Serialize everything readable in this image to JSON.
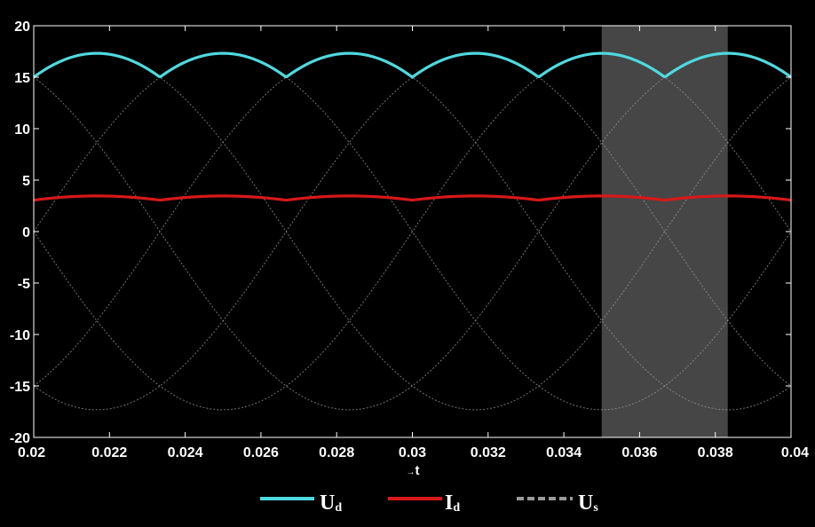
{
  "chart_data": {
    "type": "line",
    "xlabel": "t",
    "xlabel_arrow": "→",
    "xlim": [
      0.02,
      0.04
    ],
    "ylim": [
      -20,
      20
    ],
    "x_ticks": [
      "0.02",
      "0.022",
      "0.024",
      "0.026",
      "0.028",
      "0.03",
      "0.032",
      "0.034",
      "0.036",
      "0.038",
      "0.04"
    ],
    "y_ticks": [
      "20",
      "15",
      "10",
      "5",
      "0",
      "-5",
      "-10",
      "-15",
      "-20"
    ],
    "grid": false,
    "background": "#000000",
    "highlight": {
      "x_start": 0.035,
      "x_end": 0.03833,
      "color": "#464646"
    },
    "source_amplitude": 17.32,
    "source_frequency_hz": 50,
    "series": [
      {
        "name": "U",
        "subscript": "d",
        "style": "solid",
        "color": "#4fd9de",
        "description": "six-pulse rectified output voltage",
        "x": [
          0.02,
          0.021667,
          0.023333,
          0.025,
          0.026667,
          0.028333,
          0.03,
          0.031667,
          0.033333,
          0.035,
          0.036667,
          0.038333,
          0.04
        ],
        "y": [
          17.32,
          15.0,
          17.32,
          15.0,
          17.32,
          15.0,
          17.32,
          15.0,
          17.32,
          15.0,
          17.32,
          15.0,
          17.32
        ]
      },
      {
        "name": "I",
        "subscript": "d",
        "style": "solid",
        "color": "#d81818",
        "description": "load current",
        "x": [
          0.02,
          0.021667,
          0.023333,
          0.025,
          0.026667,
          0.028333,
          0.03,
          0.031667,
          0.033333,
          0.035,
          0.036667,
          0.038333,
          0.04
        ],
        "y": [
          3.46,
          3.05,
          3.46,
          3.05,
          3.46,
          3.05,
          3.46,
          3.05,
          3.46,
          3.05,
          3.46,
          3.05,
          3.46
        ]
      },
      {
        "name": "U",
        "subscript": "s",
        "style": "dashed",
        "color": "#9a9a9a",
        "description": "six source phase voltages (line-to-line sinusoids, 17.32 peak, 50 Hz)",
        "phase_offsets_deg": [
          0,
          60,
          120,
          180,
          240,
          300
        ]
      }
    ]
  }
}
